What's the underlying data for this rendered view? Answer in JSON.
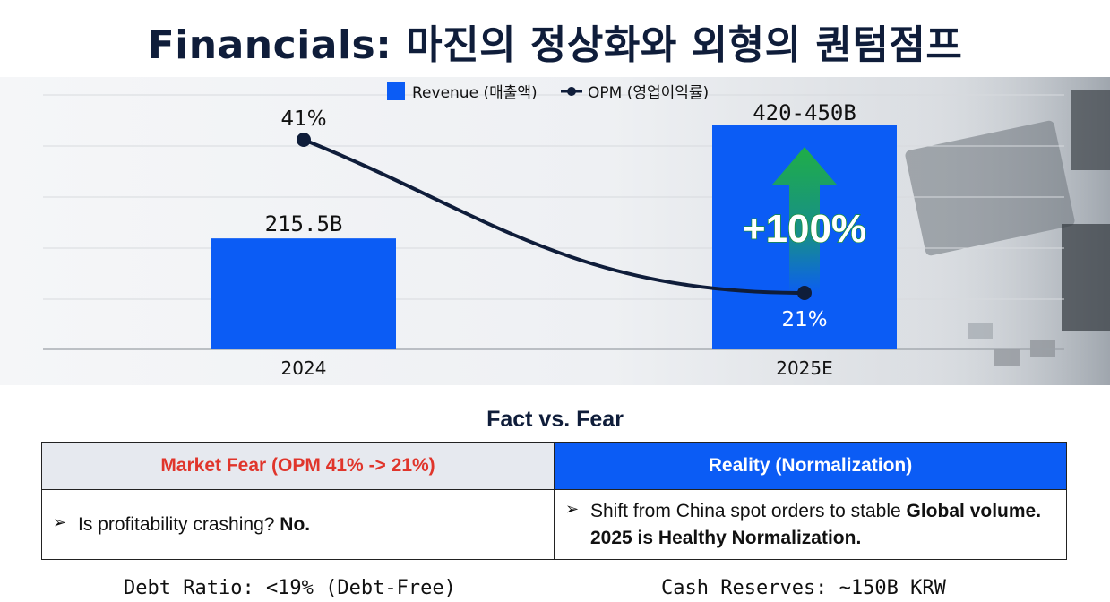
{
  "title": "Financials: 마진의 정상화와 외형의 퀀텀점프",
  "chart_data": {
    "type": "bar+line",
    "categories": [
      "2024",
      "2025E"
    ],
    "series": [
      {
        "name": "Revenue (매출액)",
        "kind": "bar",
        "values": [
          215.5,
          435
        ],
        "labels": [
          "215.5B",
          "420-450B"
        ],
        "color": "#0b5cf5"
      },
      {
        "name": "OPM (영업이익률)",
        "kind": "line",
        "values": [
          41,
          21
        ],
        "labels": [
          "41%",
          "21%"
        ],
        "color": "#0f1d3a"
      }
    ],
    "callout": "+100%",
    "revenue_ylim": [
      0,
      500
    ],
    "opm_ylim": [
      0,
      45
    ],
    "legend": "top-center",
    "grid": true
  },
  "fact": {
    "title": "Fact vs. Fear",
    "fear_header": "Market Fear (OPM 41% -> 21%)",
    "reality_header": "Reality (Normalization)",
    "fear_arrow": "➢",
    "fear_text": "Is profitability crashing?",
    "fear_bold": "No.",
    "reality_arrow": "➢",
    "reality_text": "Shift from China spot orders to stable",
    "reality_bold": "Global volume. 2025 is Healthy Normalization."
  },
  "footer": {
    "debt": "Debt Ratio: <19% (Debt-Free)",
    "cash": "Cash Reserves: ~150B KRW"
  }
}
